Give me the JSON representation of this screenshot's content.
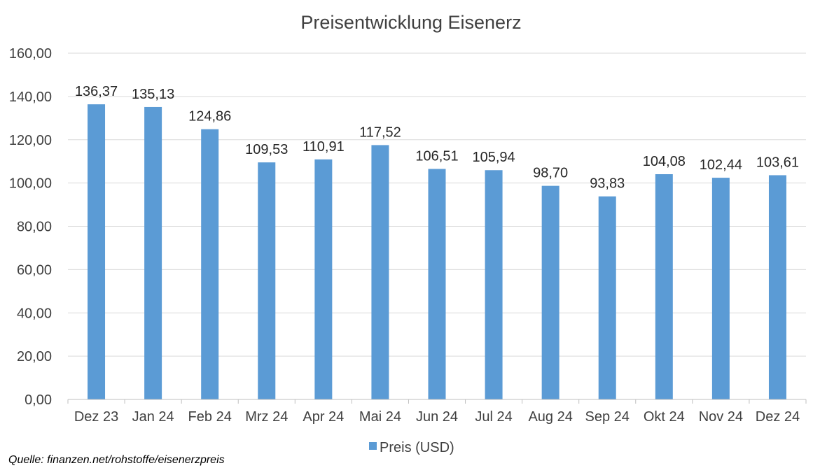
{
  "chart_data": {
    "type": "bar",
    "title": "Preisentwicklung Eisenerz",
    "categories": [
      "Dez 23",
      "Jan 24",
      "Feb 24",
      "Mrz 24",
      "Apr 24",
      "Mai 24",
      "Jun 24",
      "Jul 24",
      "Aug 24",
      "Sep 24",
      "Okt 24",
      "Nov 24",
      "Dez 24"
    ],
    "series": [
      {
        "name": "Preis (USD)",
        "values": [
          136.37,
          135.13,
          124.86,
          109.53,
          110.91,
          117.52,
          106.51,
          105.94,
          98.7,
          93.83,
          104.08,
          102.44,
          103.61
        ],
        "labels": [
          "136,37",
          "135,13",
          "124,86",
          "109,53",
          "110,91",
          "117,52",
          "106,51",
          "105,94",
          "98,70",
          "93,83",
          "104,08",
          "102,44",
          "103,61"
        ]
      }
    ],
    "ylim": [
      0,
      160
    ],
    "yticks": [
      "0,00",
      "20,00",
      "40,00",
      "60,00",
      "80,00",
      "100,00",
      "120,00",
      "140,00",
      "160,00"
    ],
    "xlabel": "",
    "ylabel": "",
    "grid": true,
    "legend_position": "bottom",
    "bar_color": "#5B9BD5",
    "source": "Quelle: finanzen.net/rohstoffe/eisenerzpreis"
  }
}
